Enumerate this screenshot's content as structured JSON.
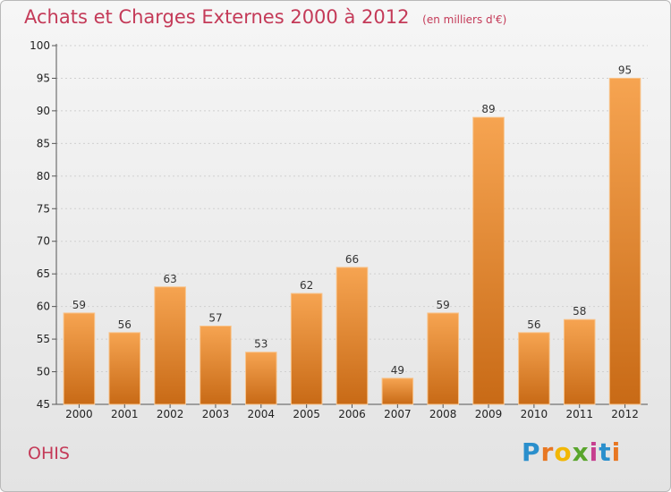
{
  "title": "Achats et Charges Externes 2000 à 2012",
  "subtitle": "(en milliers d'€)",
  "commune": "OHIS",
  "logo": {
    "letters": [
      "P",
      "r",
      "o",
      "x",
      "i",
      "t",
      "i"
    ],
    "colors": [
      "#2a8fcc",
      "#e87722",
      "#f2b705",
      "#59a52c",
      "#c63f8f",
      "#2a8fcc",
      "#e87722"
    ]
  },
  "colors": {
    "title": "#c43a58",
    "bar_top": "#f6a451",
    "bar_bottom": "#c86a16",
    "bar_edge": "#f8c48c"
  },
  "chart_data": {
    "type": "bar",
    "categories": [
      "2000",
      "2001",
      "2002",
      "2003",
      "2004",
      "2005",
      "2006",
      "2007",
      "2008",
      "2009",
      "2010",
      "2011",
      "2012"
    ],
    "values": [
      59,
      56,
      63,
      57,
      53,
      62,
      66,
      49,
      59,
      89,
      56,
      58,
      95
    ],
    "ylim": [
      45,
      100
    ],
    "yticks": [
      45,
      50,
      55,
      60,
      65,
      70,
      75,
      80,
      85,
      90,
      95,
      100
    ],
    "grid": true,
    "show_value_labels": true
  }
}
